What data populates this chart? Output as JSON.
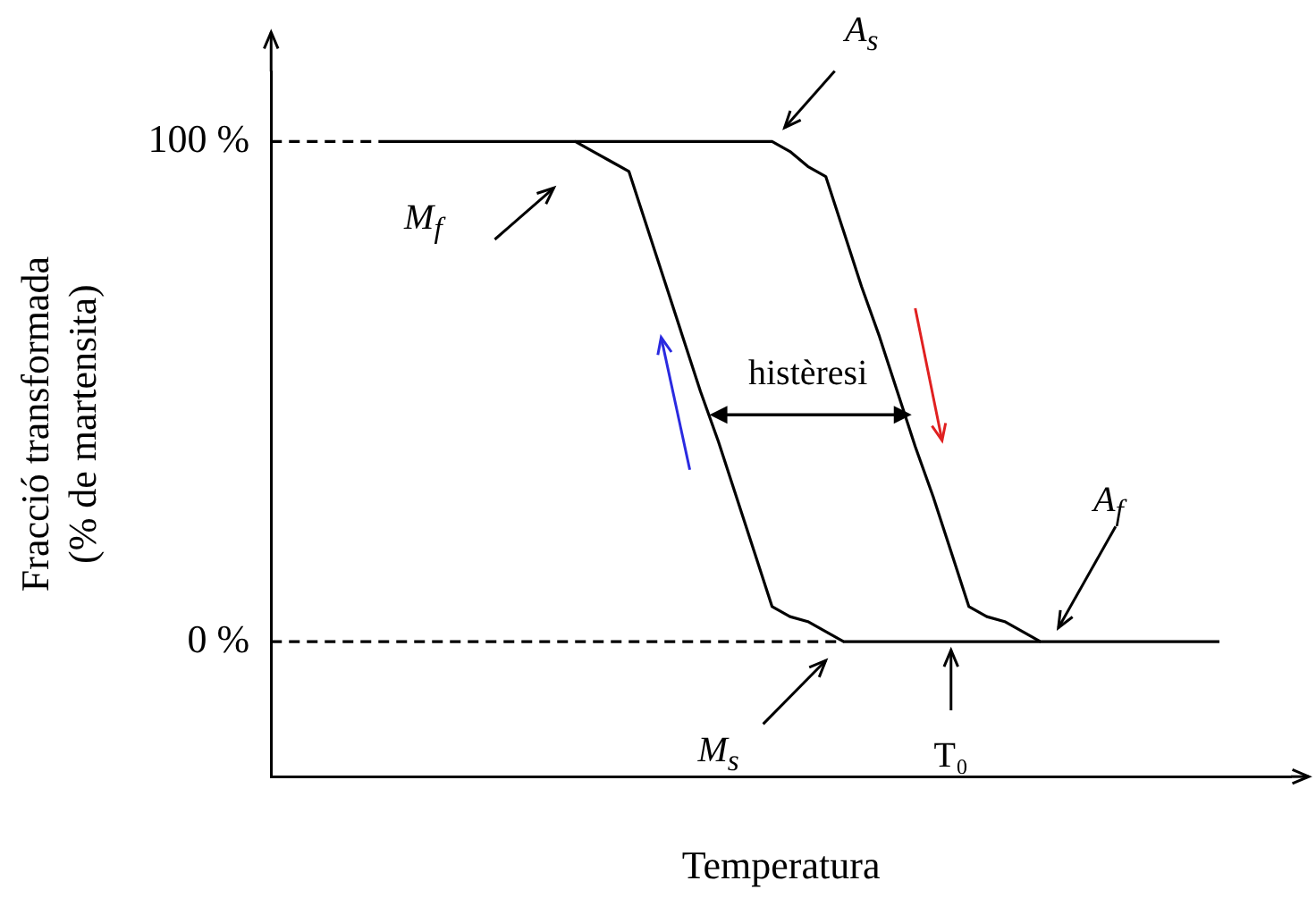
{
  "chart_data": {
    "type": "line",
    "xlabel": "Temperatura",
    "ylabel": "Fracció transformada\n(% de martensita)",
    "categories": [
      null,
      null,
      null,
      null,
      null,
      null,
      null,
      null,
      null,
      null,
      null,
      null,
      null,
      null,
      null,
      null,
      null,
      null,
      null,
      null,
      null,
      null,
      null,
      null,
      null,
      null,
      null,
      null,
      null,
      null,
      null,
      null,
      null,
      null,
      null,
      null,
      null,
      null,
      null,
      null,
      null,
      null,
      null,
      null,
      null,
      null,
      null,
      null,
      null,
      null,
      null,
      null,
      null,
      null,
      null,
      null,
      null,
      null
    ],
    "series": [
      {
        "color": "#000000",
        "line_style": "solid",
        "values": [
          null,
          null,
          null,
          null,
          null,
          null,
          100,
          100,
          100,
          100,
          100,
          100,
          100,
          100,
          100,
          100,
          100,
          100,
          98,
          96,
          94,
          83,
          72,
          61,
          50,
          40,
          29,
          18,
          7,
          5,
          4,
          2,
          0,
          0,
          0,
          0,
          0,
          0,
          0,
          0,
          0,
          0,
          0,
          0,
          null,
          null,
          null,
          null,
          null,
          null,
          null,
          null,
          null,
          null,
          null,
          null,
          null,
          null
        ]
      },
      {
        "color": "#000000",
        "line_style": "solid",
        "values": [
          null,
          null,
          null,
          null,
          null,
          null,
          null,
          null,
          null,
          null,
          null,
          null,
          null,
          null,
          null,
          null,
          null,
          100,
          100,
          100,
          100,
          100,
          100,
          100,
          100,
          100,
          100,
          100,
          100,
          98,
          95,
          93,
          82,
          71,
          61,
          50,
          39,
          29,
          18,
          7,
          5,
          4,
          2,
          0,
          0,
          0,
          0,
          0,
          0,
          0,
          0,
          0,
          0,
          0,
          null,
          null,
          null,
          null
        ]
      },
      {
        "color": "#000000",
        "line_style": "dashed",
        "values": [
          100,
          100,
          100,
          100,
          100,
          100,
          100,
          null,
          null,
          null,
          null,
          null,
          null,
          null,
          null,
          null,
          null,
          null,
          null,
          null,
          null,
          null,
          null,
          null,
          null,
          null,
          null,
          null,
          null,
          null,
          null,
          null,
          null,
          null,
          null,
          null,
          null,
          null,
          null,
          null,
          null,
          null,
          null,
          null,
          null,
          null,
          null,
          null,
          null,
          null,
          null,
          null,
          null,
          null,
          null,
          null,
          null,
          null
        ]
      },
      {
        "color": "#000000",
        "line_style": "dashed",
        "values": [
          0,
          0,
          0,
          0,
          0,
          0,
          0,
          0,
          0,
          0,
          0,
          0,
          0,
          0,
          0,
          0,
          0,
          0,
          0,
          0,
          0,
          0,
          0,
          0,
          0,
          0,
          0,
          0,
          0,
          0,
          0,
          0,
          0,
          null,
          null,
          null,
          null,
          null,
          null,
          null,
          null,
          null,
          null,
          null,
          null,
          null,
          null,
          null,
          null,
          null,
          null,
          null,
          null,
          null,
          null,
          null,
          null,
          null
        ]
      }
    ],
    "ylim": [
      -27,
      114
    ],
    "yticks": [
      {
        "value": 0,
        "label": "0 %"
      },
      {
        "value": 100,
        "label": "100 %"
      }
    ],
    "tick_labels": "y",
    "marker": "none",
    "legend": false,
    "grid": false,
    "annotations": [
      "A$_{s}$",
      "M$_{f}$",
      "histèresi",
      "A$_{f}$",
      "M$_{s}$",
      "T₀"
    ]
  }
}
